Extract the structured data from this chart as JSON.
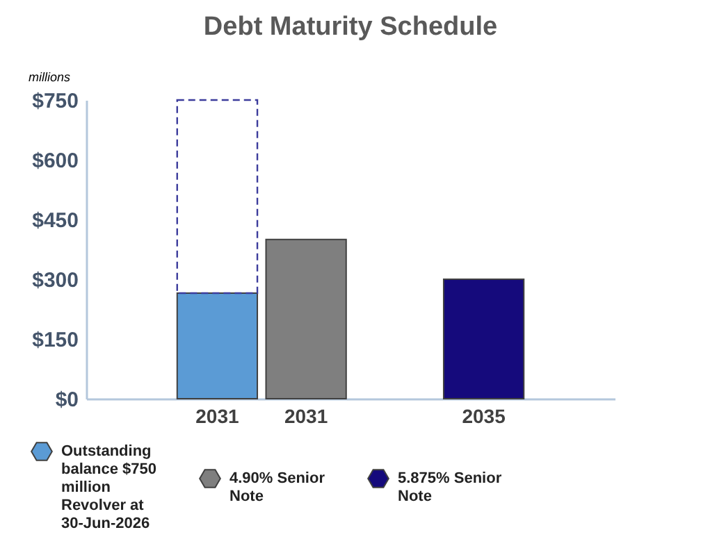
{
  "chart_data": {
    "type": "bar",
    "title": "Debt Maturity Schedule",
    "ylabel": "millions",
    "categories": [
      null,
      "2031",
      "2031",
      null,
      "2035",
      null
    ],
    "stacked": true,
    "series": [
      {
        "name": "Outstanding balance $750 million Revolver at 30-Jun-2026",
        "color": "#5b9bd5",
        "values": [
          null,
          265,
          null,
          null,
          null,
          null
        ]
      },
      {
        "color": "#3c3c9c",
        "line_style": "dashed",
        "values": [
          null,
          485,
          null,
          null,
          null,
          null
        ]
      },
      {
        "name": "4.90% Senior Note",
        "color": "#7f7f7f",
        "values": [
          null,
          null,
          400,
          null,
          null,
          null
        ]
      },
      {
        "name": "5.875% Senior Note",
        "color": "#150a7c",
        "values": [
          null,
          null,
          null,
          null,
          300,
          null
        ]
      }
    ],
    "ylim": [
      0,
      750
    ],
    "yticks": [
      {
        "value": 0,
        "label": "$0"
      },
      {
        "value": 150,
        "label": "$150"
      },
      {
        "value": 300,
        "label": "$300"
      },
      {
        "value": 450,
        "label": "$450"
      },
      {
        "value": 600,
        "label": "$600"
      },
      {
        "value": 750,
        "label": "$750"
      }
    ],
    "grid": false,
    "legend": "bottom"
  }
}
